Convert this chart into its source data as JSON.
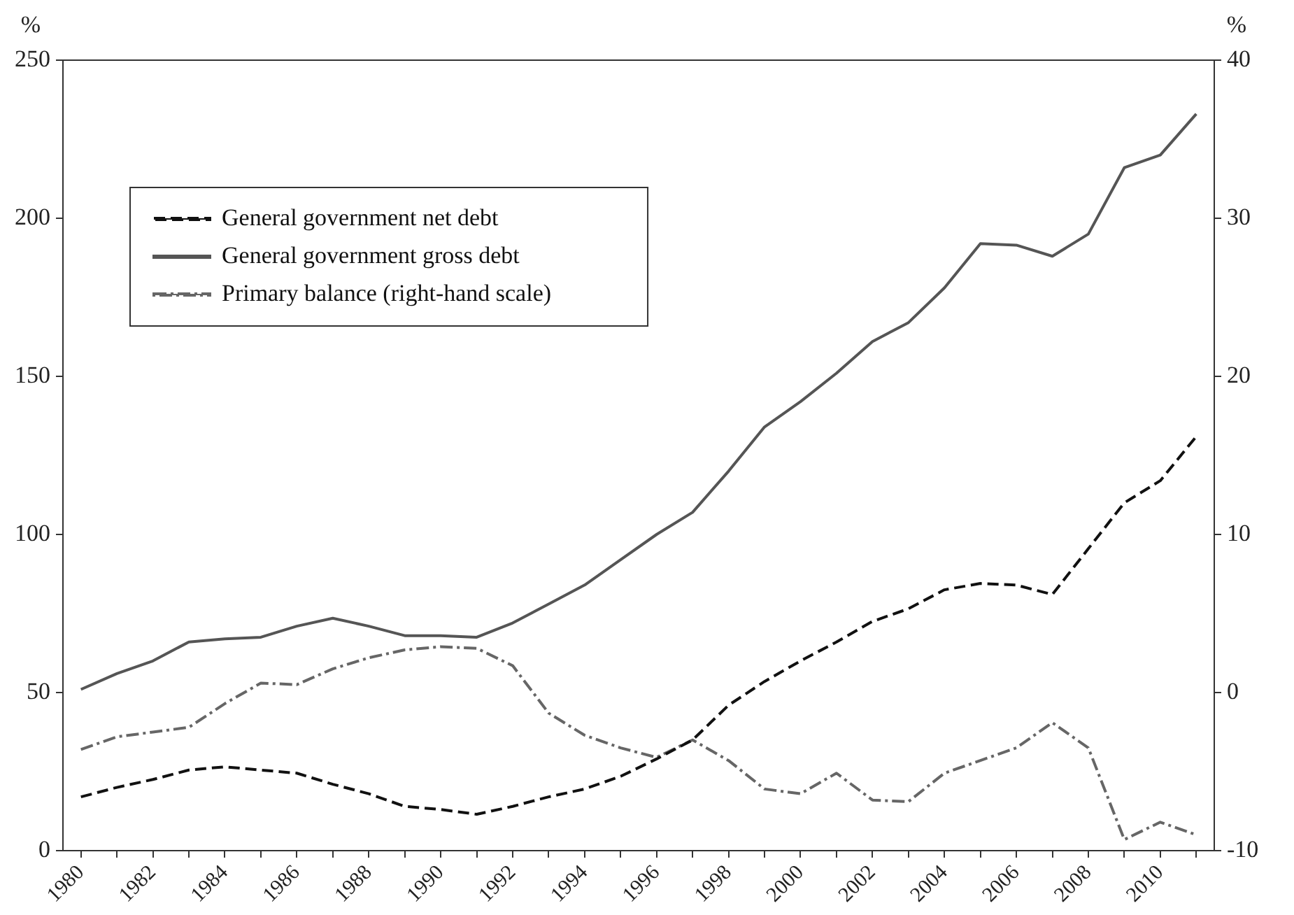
{
  "chart_data": {
    "type": "line",
    "ylabel": "%",
    "y2label": "%",
    "categories": [
      "1980",
      null,
      "1982",
      null,
      "1984",
      null,
      "1986",
      null,
      "1988",
      null,
      "1990",
      null,
      "1992",
      null,
      "1994",
      null,
      "1996",
      null,
      "1998",
      null,
      "2000",
      null,
      "2002",
      null,
      "2004",
      null,
      "2006",
      null,
      "2008",
      null,
      "2010",
      null
    ],
    "series": [
      {
        "name": "General government net debt",
        "color": "#111111",
        "line_style": "dashed",
        "values": [
          17,
          20,
          22.5,
          25.5,
          26.5,
          25.5,
          24.5,
          21,
          18,
          14,
          13,
          11.5,
          14,
          17,
          19.5,
          23.5,
          29,
          35,
          46,
          53.5,
          60,
          66,
          72.5,
          76.5,
          82.5,
          84.5,
          84,
          81,
          95.5,
          110,
          117,
          131
        ]
      },
      {
        "name": "General government gross debt",
        "color": "#555555",
        "line_style": "solid",
        "values": [
          51,
          56,
          60,
          66,
          67,
          67.5,
          71,
          73.5,
          71,
          68,
          68,
          67.5,
          72,
          78,
          84,
          92,
          100,
          107,
          120,
          134,
          142,
          151,
          161,
          167,
          178,
          192,
          191.5,
          188,
          195,
          216,
          220,
          233
        ]
      },
      {
        "name": "Primary balance (right-hand scale)",
        "color": "#666666",
        "line_style": "dashdot",
        "axis": "y2",
        "values": [
          -3.6,
          -2.8,
          -2.5,
          -2.2,
          -0.7,
          0.6,
          0.5,
          1.5,
          2.2,
          2.7,
          2.9,
          2.8,
          1.7,
          -1.3,
          -2.7,
          -3.5,
          -4.1,
          -3.0,
          -4.3,
          -6.1,
          -6.4,
          -5.1,
          -6.8,
          -6.9,
          -5.1,
          -4.3,
          -3.5,
          -1.9,
          -3.5,
          -9.3,
          -8.2,
          -9.0
        ]
      }
    ],
    "ylim": [
      0,
      250
    ],
    "yticks": [
      0,
      50,
      100,
      150,
      200,
      250
    ],
    "y2lim": [
      -10,
      40
    ],
    "y2ticks": [
      -10,
      0,
      10,
      20,
      30,
      40
    ],
    "grid": false,
    "legend": "top left",
    "marker": "none"
  }
}
